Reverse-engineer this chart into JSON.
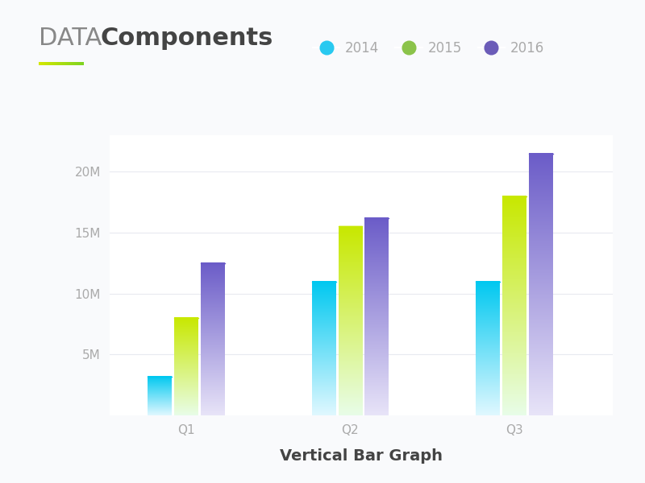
{
  "title_light": "DATA ",
  "title_bold": "Components",
  "subtitle_line_color_left": "#d4e800",
  "subtitle_line_color_right": "#7ed321",
  "xlabel": "Vertical Bar Graph",
  "categories": [
    "Q1",
    "Q2",
    "Q3"
  ],
  "years": [
    "2014",
    "2015",
    "2016"
  ],
  "values": {
    "2014": [
      3.2,
      11.0,
      11.0
    ],
    "2015": [
      8.0,
      15.5,
      18.0
    ],
    "2016": [
      12.5,
      16.2,
      21.5
    ]
  },
  "ylim": [
    0,
    23000000
  ],
  "yticks": [
    5000000,
    10000000,
    15000000,
    20000000
  ],
  "ytick_labels": [
    "5M",
    "10M",
    "15M",
    "20M"
  ],
  "bar_width": 0.22,
  "legend_colors": {
    "2014": "#29c9f0",
    "2015": "#8bc34a",
    "2016": "#6b5cb8"
  },
  "bar_gradient_top": {
    "2014": "#00c8f0",
    "2015": "#c8e800",
    "2016": "#6b5cc8"
  },
  "bar_gradient_bottom": {
    "2014": "#e0f8ff",
    "2015": "#e8fde8",
    "2016": "#e8e4f8"
  },
  "background_color": "#f9fafc",
  "plot_bg_color": "#ffffff",
  "grid_color": "#e8eaf0",
  "text_color_light": "#aaaaaa",
  "text_color_dark": "#444444",
  "text_color_title_light": "#888888",
  "title_fontsize": 22,
  "axis_fontsize": 12,
  "legend_fontsize": 12,
  "tick_fontsize": 11
}
